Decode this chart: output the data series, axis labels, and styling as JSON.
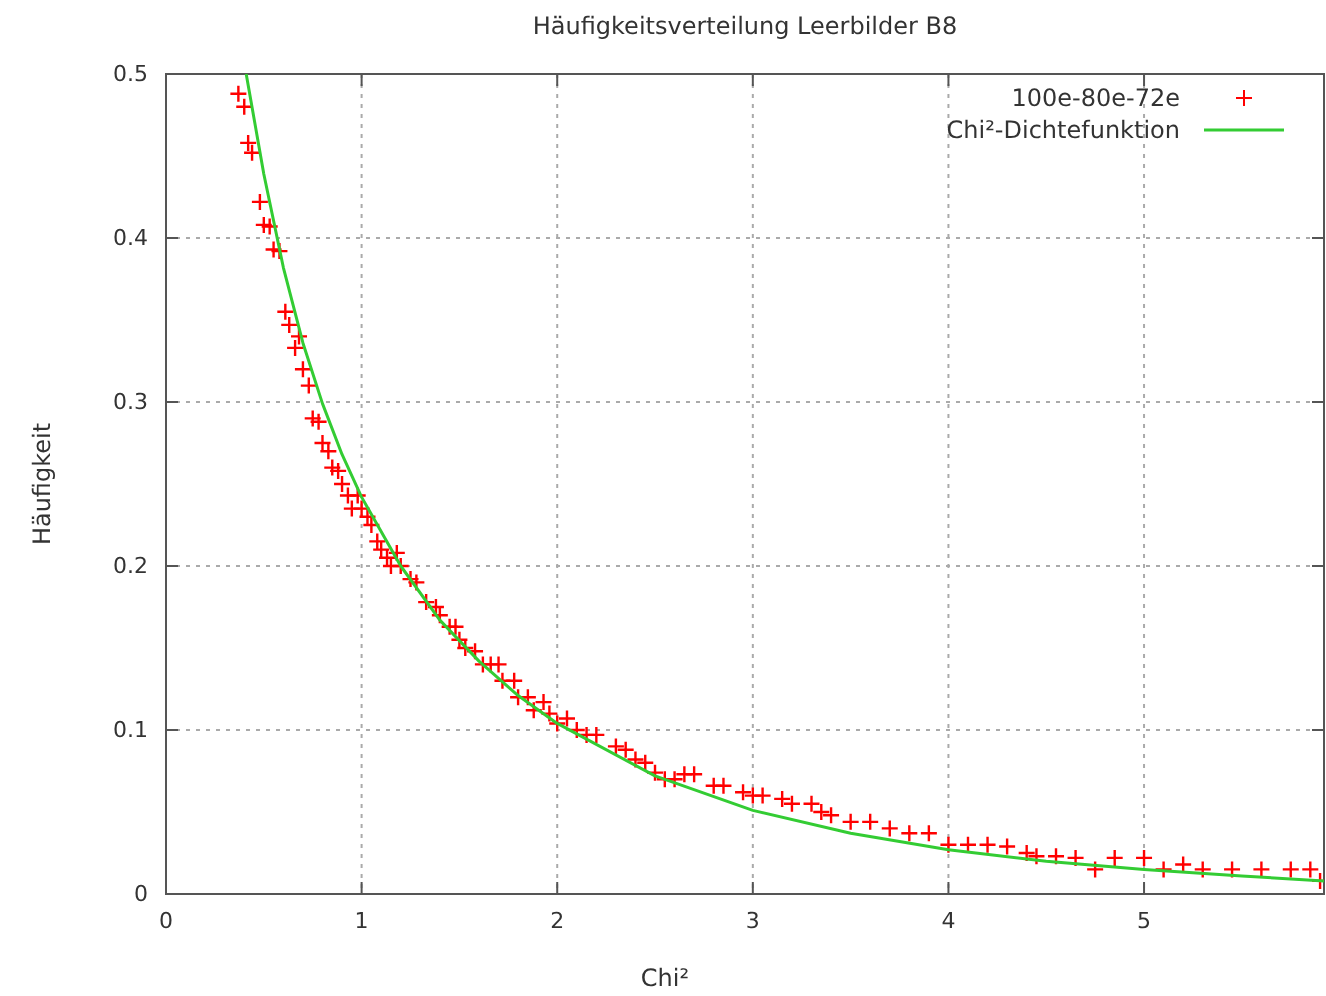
{
  "chart_data": {
    "type": "scatter",
    "title": "Häufigkeitsverteilung Leerbilder B8",
    "xlabel": "Chi²",
    "ylabel": "Häufigkeit",
    "xlim": [
      0,
      5.92
    ],
    "ylim": [
      0,
      0.5
    ],
    "xticks": [
      0,
      1,
      2,
      3,
      4,
      5
    ],
    "yticks": [
      0,
      0.1,
      0.2,
      0.3,
      0.4,
      0.5
    ],
    "grid": true,
    "legend": "top right",
    "series": [
      {
        "name": "100e-80e-72e",
        "marker": "cross",
        "color": "#ff0000",
        "x": [
          0.37,
          0.4,
          0.42,
          0.44,
          0.48,
          0.5,
          0.53,
          0.55,
          0.58,
          0.61,
          0.63,
          0.66,
          0.68,
          0.7,
          0.73,
          0.75,
          0.78,
          0.8,
          0.83,
          0.85,
          0.88,
          0.9,
          0.93,
          0.95,
          0.98,
          1.0,
          1.03,
          1.05,
          1.08,
          1.1,
          1.13,
          1.15,
          1.18,
          1.2,
          1.25,
          1.28,
          1.33,
          1.38,
          1.4,
          1.45,
          1.48,
          1.5,
          1.53,
          1.58,
          1.62,
          1.66,
          1.7,
          1.72,
          1.78,
          1.8,
          1.85,
          1.88,
          1.93,
          1.96,
          2.0,
          2.05,
          2.1,
          2.15,
          2.2,
          2.3,
          2.35,
          2.4,
          2.45,
          2.5,
          2.55,
          2.6,
          2.65,
          2.7,
          2.8,
          2.85,
          2.95,
          3.0,
          3.05,
          3.15,
          3.2,
          3.3,
          3.35,
          3.4,
          3.5,
          3.6,
          3.7,
          3.8,
          3.9,
          4.0,
          4.1,
          4.2,
          4.3,
          4.4,
          4.45,
          4.55,
          4.65,
          4.75,
          4.85,
          5.0,
          5.1,
          5.2,
          5.3,
          5.45,
          5.6,
          5.75,
          5.85,
          5.9
        ],
        "values": [
          0.488,
          0.48,
          0.458,
          0.452,
          0.422,
          0.408,
          0.407,
          0.393,
          0.392,
          0.355,
          0.347,
          0.333,
          0.34,
          0.32,
          0.31,
          0.29,
          0.288,
          0.275,
          0.27,
          0.26,
          0.258,
          0.25,
          0.243,
          0.235,
          0.243,
          0.235,
          0.23,
          0.225,
          0.215,
          0.21,
          0.205,
          0.2,
          0.208,
          0.2,
          0.192,
          0.19,
          0.178,
          0.175,
          0.17,
          0.163,
          0.163,
          0.155,
          0.15,
          0.148,
          0.14,
          0.14,
          0.14,
          0.13,
          0.13,
          0.12,
          0.12,
          0.112,
          0.117,
          0.11,
          0.104,
          0.107,
          0.1,
          0.097,
          0.097,
          0.09,
          0.088,
          0.082,
          0.08,
          0.074,
          0.07,
          0.07,
          0.073,
          0.073,
          0.066,
          0.066,
          0.062,
          0.06,
          0.06,
          0.058,
          0.055,
          0.055,
          0.05,
          0.048,
          0.044,
          0.044,
          0.04,
          0.037,
          0.037,
          0.03,
          0.03,
          0.03,
          0.029,
          0.025,
          0.023,
          0.023,
          0.022,
          0.015,
          0.022,
          0.022,
          0.015,
          0.018,
          0.015,
          0.015,
          0.015,
          0.015,
          0.015,
          0.008
        ]
      },
      {
        "name": "Chi²-Dichtefunktion",
        "type": "line",
        "marker": "none",
        "color": "#33cc33",
        "x": [
          0.41,
          0.5,
          0.6,
          0.7,
          0.8,
          0.9,
          1.0,
          1.2,
          1.4,
          1.6,
          1.8,
          2.0,
          2.5,
          3.0,
          3.5,
          4.0,
          4.5,
          5.0,
          5.5,
          5.92
        ],
        "values": [
          0.5,
          0.439,
          0.382,
          0.336,
          0.299,
          0.268,
          0.242,
          0.2,
          0.167,
          0.142,
          0.121,
          0.104,
          0.072,
          0.051,
          0.037,
          0.027,
          0.02,
          0.015,
          0.011,
          0.008
        ]
      }
    ]
  }
}
